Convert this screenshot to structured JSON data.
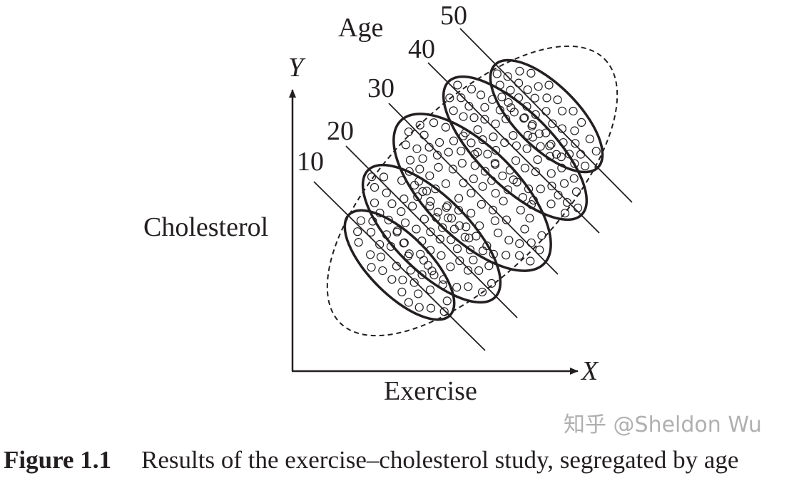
{
  "figure": {
    "axis_y_label": "Y",
    "axis_x_label": "X",
    "y_quantity": "Cholesterol",
    "x_quantity": "Exercise",
    "group_title": "Age",
    "age_groups": [
      "10",
      "20",
      "30",
      "40",
      "50"
    ]
  },
  "caption": {
    "number": "Figure 1.1",
    "text": "Results of the exercise–cholesterol study, segregated by age"
  },
  "watermark": "知乎 @Sheldon Wu"
}
